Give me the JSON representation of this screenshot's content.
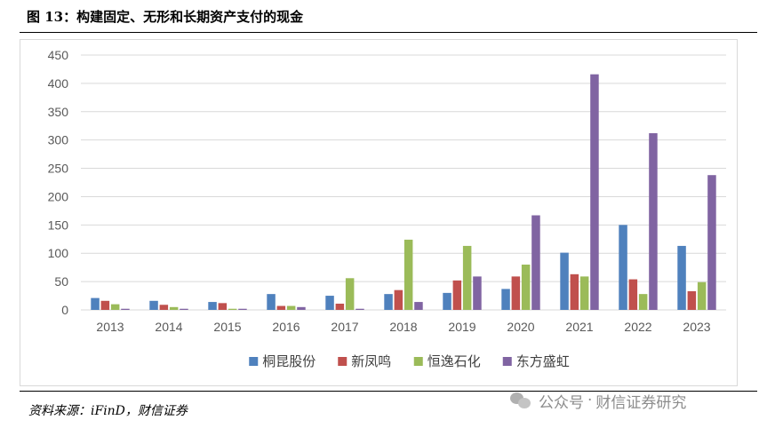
{
  "figure": {
    "title": "图 13：构建固定、无形和长期资产支付的现金",
    "source": "资料来源：iFinD，财信证券"
  },
  "watermark": {
    "account": "公众号",
    "sep": "·",
    "name": "财信证券研究",
    "icon": "wechat-icon"
  },
  "chart_data": {
    "type": "bar",
    "title": "",
    "xlabel": "",
    "ylabel": "",
    "categories": [
      "2013",
      "2014",
      "2015",
      "2016",
      "2017",
      "2018",
      "2019",
      "2020",
      "2021",
      "2022",
      "2023"
    ],
    "ylim": [
      0,
      450
    ],
    "yticks": [
      0,
      50,
      100,
      150,
      200,
      250,
      300,
      350,
      400,
      450
    ],
    "grid": true,
    "legend_position": "bottom",
    "series": [
      {
        "name": "桐昆股份",
        "color": "#4f81bd",
        "values": [
          21,
          16,
          14,
          28,
          25,
          28,
          30,
          37,
          101,
          150,
          113
        ]
      },
      {
        "name": "新凤鸣",
        "color": "#c0504d",
        "values": [
          16,
          9,
          12,
          7,
          11,
          35,
          52,
          59,
          63,
          54,
          33
        ]
      },
      {
        "name": "恒逸石化",
        "color": "#9bbb59",
        "values": [
          10,
          5,
          2,
          7,
          56,
          124,
          113,
          80,
          59,
          28,
          49
        ]
      },
      {
        "name": "东方盛虹",
        "color": "#8064a2",
        "values": [
          2,
          2,
          2,
          5,
          2,
          14,
          59,
          167,
          416,
          312,
          238
        ]
      }
    ]
  }
}
